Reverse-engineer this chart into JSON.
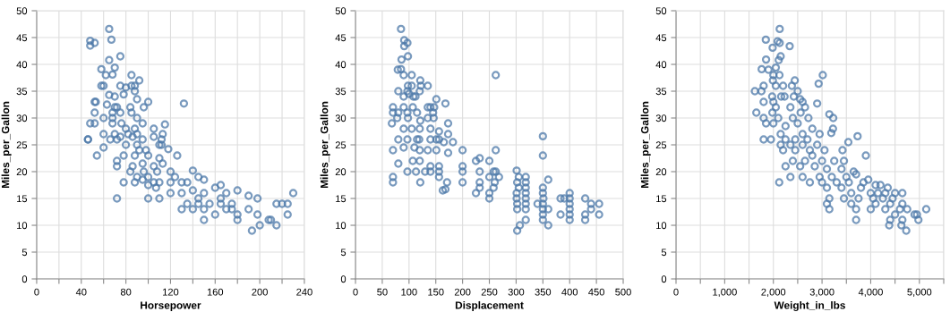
{
  "chart_data": [
    {
      "type": "scatter",
      "xlabel": "Horsepower",
      "ylabel": "Miles_per_Gallon",
      "color": "#4c78a8",
      "marker": "circle",
      "grid": true,
      "xlim": [
        0,
        240
      ],
      "ylim": [
        0,
        50
      ],
      "xticks": [
        0,
        {
          "value": 20,
          "label": null
        },
        40,
        {
          "value": 60,
          "label": null
        },
        80,
        {
          "value": 100,
          "label": null
        },
        120,
        {
          "value": 140,
          "label": null
        },
        160,
        {
          "value": 180,
          "label": null
        },
        200,
        {
          "value": 220,
          "label": null
        },
        240
      ],
      "yticks": [
        0,
        5,
        10,
        15,
        20,
        25,
        30,
        35,
        40,
        45,
        50
      ],
      "x": [
        46,
        48,
        48,
        52,
        65,
        67,
        75,
        65,
        70,
        58,
        62,
        68,
        85,
        92,
        58,
        60,
        75,
        80,
        88,
        85,
        88,
        65,
        70,
        78,
        90,
        52,
        53,
        63,
        70,
        72,
        84,
        96,
        100,
        132,
        52,
        60,
        68,
        75,
        85,
        90,
        95,
        115,
        48,
        52,
        68,
        80,
        88,
        90,
        105,
        113,
        60,
        70,
        75,
        86,
        95,
        105,
        112,
        46,
        66,
        72,
        80,
        90,
        98,
        110,
        118,
        60,
        54,
        78,
        88,
        100,
        110,
        126,
        72,
        72,
        86,
        95,
        105,
        113,
        84,
        90,
        100,
        108,
        120,
        124,
        78,
        88,
        95,
        100,
        105,
        110,
        120,
        130,
        135,
        140,
        145,
        150,
        72,
        100,
        110,
        120,
        130,
        140,
        150,
        160,
        165,
        170,
        180,
        190,
        198,
        130,
        140,
        145,
        150,
        155,
        160,
        165,
        170,
        175,
        180,
        190,
        198,
        150,
        180,
        193,
        200,
        208,
        210,
        215,
        220,
        225,
        215,
        225,
        230,
        175,
        165,
        145,
        135,
        112,
        107,
        96,
        92,
        82,
        76,
        68
      ],
      "values": [
        26,
        43.5,
        44.4,
        44,
        46.6,
        44.6,
        41.5,
        40.8,
        39.4,
        39.1,
        38,
        38.1,
        38,
        37,
        36,
        36,
        36,
        35.7,
        36,
        36,
        35,
        34.3,
        34,
        34.4,
        33.5,
        33,
        33,
        32.5,
        32,
        32,
        32,
        32,
        33,
        32.7,
        31,
        30,
        30,
        31,
        31,
        30,
        29,
        28.8,
        29,
        29,
        29,
        28,
        28,
        27,
        28,
        27,
        27,
        27,
        26.5,
        26.5,
        26,
        26.5,
        26,
        26,
        26,
        26,
        25,
        25,
        24,
        25,
        24.2,
        24.5,
        23,
        23,
        23,
        23,
        22.5,
        23,
        22,
        21,
        21,
        21.5,
        21,
        21.5,
        20,
        19,
        19,
        20,
        20,
        19,
        18,
        18,
        18.5,
        17.5,
        18,
        18,
        18,
        18,
        18,
        20.2,
        19,
        18.5,
        15,
        15,
        15,
        16,
        16,
        16.5,
        16,
        17,
        17.5,
        16,
        16.5,
        15.5,
        15,
        13,
        13,
        14,
        13,
        14,
        12,
        14,
        13,
        14,
        12,
        13,
        12,
        11,
        11,
        9,
        10,
        11,
        11,
        14,
        14,
        14,
        10,
        12,
        16,
        13,
        15,
        15,
        14,
        25,
        17,
        20,
        24,
        27,
        29,
        31
      ]
    },
    {
      "type": "scatter",
      "xlabel": "Displacement",
      "ylabel": "Miles_per_Gallon",
      "color": "#4c78a8",
      "marker": "circle",
      "grid": true,
      "xlim": [
        0,
        500
      ],
      "ylim": [
        0,
        50
      ],
      "xticks": [
        0,
        50,
        100,
        150,
        200,
        250,
        300,
        350,
        400,
        450,
        500
      ],
      "yticks": [
        0,
        5,
        10,
        15,
        20,
        25,
        30,
        35,
        40,
        45,
        50
      ],
      "x": [
        85,
        91,
        91,
        97,
        98,
        86,
        85,
        79,
        90,
        105,
        121,
        262,
        98,
        105,
        122,
        135,
        80,
        97,
        120,
        90,
        100,
        108,
        112,
        151,
        168,
        70,
        90,
        107,
        135,
        140,
        147,
        70,
        80,
        97,
        115,
        145,
        68,
        78,
        98,
        121,
        135,
        146,
        173,
        90,
        105,
        120,
        140,
        156,
        173,
        80,
        97,
        115,
        119,
        140,
        151,
        156,
        165,
        182,
        70,
        90,
        110,
        120,
        135,
        151,
        173,
        200,
        262,
        80,
        107,
        120,
        140,
        156,
        225,
        232,
        250,
        97,
        113,
        130,
        140,
        156,
        200,
        200,
        232,
        250,
        258,
        262,
        268,
        70,
        70,
        121,
        156,
        171,
        163,
        168,
        200,
        225,
        232,
        250,
        250,
        258,
        260,
        232,
        301,
        302,
        305,
        318,
        318,
        301,
        318,
        301,
        318,
        302,
        318,
        302,
        318,
        318,
        302,
        307,
        340,
        350,
        350,
        350,
        350,
        351,
        350,
        350,
        350,
        350,
        360,
        360,
        360,
        383,
        390,
        400,
        400,
        400,
        400,
        400,
        400,
        383,
        429,
        429,
        429,
        440,
        440,
        455,
        455,
        318,
        305
      ],
      "values": [
        46.6,
        44.5,
        43.4,
        44,
        41.5,
        40.9,
        39.1,
        39,
        38,
        38,
        37,
        38,
        36,
        36,
        36,
        36,
        35,
        35,
        35,
        34,
        34.5,
        34,
        34,
        33.5,
        32.7,
        32,
        32,
        32,
        32,
        32,
        32,
        31,
        31,
        31,
        31,
        31,
        29,
        30,
        30,
        29.5,
        30,
        30,
        29,
        28,
        28,
        28,
        28,
        27.5,
        27,
        26,
        26,
        26,
        26,
        26,
        26,
        26,
        25.5,
        25.5,
        24,
        24.5,
        24.5,
        24,
        24,
        24,
        23.5,
        24,
        24,
        21.5,
        22,
        22,
        21,
        21,
        22,
        22.5,
        22,
        20,
        20,
        20,
        20,
        20,
        20,
        21,
        20,
        19,
        20,
        20,
        19,
        19,
        18,
        18,
        19,
        18,
        16.5,
        16.7,
        18,
        16,
        18,
        16,
        15,
        17,
        18,
        17,
        20.2,
        18,
        19,
        19,
        18,
        16,
        16,
        15,
        15,
        14,
        14,
        13,
        13,
        11,
        9,
        10,
        14,
        26.6,
        23,
        17,
        16,
        15,
        14,
        13,
        12,
        11,
        13,
        10,
        18.5,
        15,
        15,
        16,
        15,
        14,
        13,
        12,
        11,
        12,
        15,
        12,
        11,
        14,
        13,
        14,
        12,
        17,
        17
      ]
    },
    {
      "type": "scatter",
      "xlabel": "Weight_in_lbs",
      "ylabel": "Miles_per_Gallon",
      "color": "#4c78a8",
      "marker": "circle",
      "grid": true,
      "xlim": [
        0,
        5500
      ],
      "ylim": [
        0,
        50
      ],
      "xticks": [
        {
          "value": 0,
          "label": "0"
        },
        {
          "value": 500,
          "label": null
        },
        {
          "value": 1000,
          "label": "1,000"
        },
        {
          "value": 1500,
          "label": null
        },
        {
          "value": 2000,
          "label": "2,000"
        },
        {
          "value": 2500,
          "label": null
        },
        {
          "value": 3000,
          "label": "3,000"
        },
        {
          "value": 3500,
          "label": null
        },
        {
          "value": 4000,
          "label": "4,000"
        },
        {
          "value": 4500,
          "label": null
        },
        {
          "value": 5000,
          "label": "5,000"
        },
        {
          "value": 5500,
          "label": null
        }
      ],
      "yticks": [
        0,
        5,
        10,
        15,
        20,
        25,
        30,
        35,
        40,
        45,
        50
      ],
      "x": [
        2130,
        1845,
        2085,
        2130,
        2335,
        1985,
        2150,
        2110,
        1850,
        2050,
        1760,
        1900,
        2000,
        2125,
        3015,
        1990,
        2440,
        2930,
        1800,
        2050,
        2200,
        2380,
        1620,
        1755,
        2500,
        1975,
        2160,
        2230,
        2420,
        2550,
        1800,
        2000,
        2600,
        2900,
        2050,
        2350,
        2650,
        1650,
        1980,
        2560,
        3150,
        1800,
        2100,
        2400,
        2720,
        3230,
        1850,
        2000,
        2250,
        2500,
        2800,
        3225,
        2150,
        2600,
        3190,
        2950,
        3730,
        1800,
        1950,
        2250,
        2450,
        2700,
        2150,
        2350,
        2600,
        2900,
        3540,
        2200,
        2450,
        2750,
        3050,
        3420,
        2800,
        3900,
        2400,
        2650,
        3000,
        3250,
        3450,
        2250,
        2550,
        2850,
        3100,
        3400,
        3650,
        2350,
        2600,
        2950,
        3200,
        3500,
        3700,
        2120,
        2750,
        3000,
        3300,
        3550,
        3850,
        3950,
        3100,
        3400,
        3800,
        4100,
        4200,
        4350,
        3600,
        4000,
        4150,
        4300,
        4500,
        4650,
        3150,
        3450,
        3750,
        4050,
        4250,
        4450,
        3100,
        3600,
        4100,
        4400,
        4650,
        3150,
        3700,
        4000,
        4300,
        4600,
        4750,
        5140,
        3700,
        4400,
        4650,
        4980,
        4380,
        4630,
        4730,
        4950,
        4500,
        4900
      ],
      "values": [
        46.6,
        44.6,
        44.3,
        44,
        43.4,
        43.1,
        41.5,
        40.8,
        40.9,
        39.4,
        39.1,
        39,
        38,
        38,
        38,
        37,
        37,
        36.4,
        36,
        36,
        36,
        36,
        35,
        35,
        35,
        34,
        34,
        34,
        34,
        33.5,
        33,
        33,
        33,
        32.7,
        32,
        32,
        32,
        31,
        31,
        31,
        30.7,
        30,
        30,
        30,
        30,
        30,
        29,
        29,
        28.5,
        29,
        28,
        28,
        27,
        27,
        27.2,
        27,
        26.6,
        26,
        26,
        26,
        26,
        26,
        25,
        25,
        25,
        25,
        25.5,
        24,
        24,
        24,
        24,
        24,
        23,
        23,
        22,
        22,
        22,
        22,
        22,
        21,
        21,
        21,
        20.5,
        20.5,
        20,
        19,
        19,
        19,
        19,
        19,
        19.5,
        18,
        18,
        18,
        18,
        18,
        18,
        18.5,
        17,
        17,
        17,
        17.5,
        17.5,
        17,
        16,
        16,
        16,
        16,
        16,
        16,
        15,
        15,
        15,
        15,
        15,
        15,
        14,
        14,
        14,
        14,
        14,
        13,
        13,
        13,
        13,
        13,
        13,
        13,
        11,
        11,
        11,
        11,
        10,
        10,
        9,
        12,
        12,
        12
      ]
    }
  ]
}
